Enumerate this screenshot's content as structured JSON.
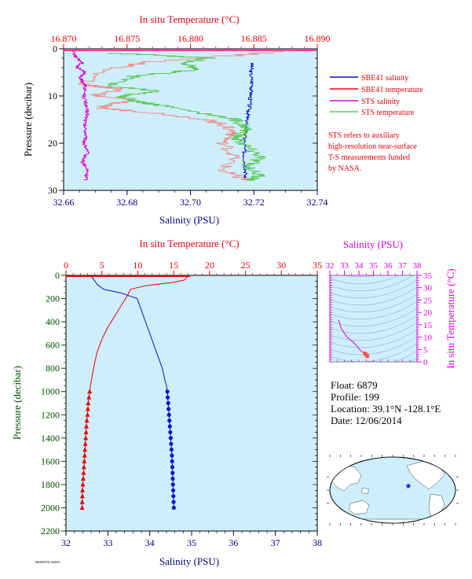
{
  "colors": {
    "plot_bg": "#cdeefa",
    "red": "#e8000b",
    "red_light": "#f0908c",
    "blue": "#0a14c8",
    "magenta": "#dd00dd",
    "green": "#5fc95f",
    "navy_text": "#000080",
    "green_text": "#004d00",
    "black": "#000000"
  },
  "chart_data": [
    {
      "type": "line",
      "title": "In situ Temperature (°C)",
      "top_axis": {
        "label": "In situ Temperature (°C)",
        "range": [
          16.87,
          16.89
        ],
        "ticks": [
          "16.870",
          "16.875",
          "16.880",
          "16.885",
          "16.890"
        ]
      },
      "bottom_axis": {
        "label": "Salinity (PSU)",
        "range": [
          32.66,
          32.74
        ],
        "ticks": [
          "32.66",
          "32.68",
          "32.70",
          "32.72",
          "32.74"
        ]
      },
      "y_axis": {
        "label": "Pressure (decibar)",
        "range": [
          0,
          30
        ],
        "inverted": true,
        "ticks": [
          "0",
          "10",
          "20",
          "30"
        ]
      },
      "legend": [
        {
          "name": "SBE41 salinity",
          "color": "blue"
        },
        {
          "name": "SBE41 temperature",
          "color": "red"
        },
        {
          "name": "STS salinity",
          "color": "magenta"
        },
        {
          "name": "STS temperature",
          "color": "green"
        }
      ],
      "note": [
        "STS refers to auxiliary",
        "high-resolution near-surface",
        "T-S measurements funded",
        "by NASA."
      ],
      "series": [
        {
          "name": "SBE41 salinity",
          "axis": "salinity",
          "color": "blue",
          "points": [
            [
              32.7195,
              3
            ],
            [
              32.719,
              5
            ],
            [
              32.7195,
              8
            ],
            [
              32.719,
              10
            ],
            [
              32.7185,
              13
            ],
            [
              32.7178,
              15
            ],
            [
              32.7175,
              17
            ],
            [
              32.717,
              20
            ],
            [
              32.717,
              23
            ],
            [
              32.7175,
              26
            ],
            [
              32.717,
              28
            ]
          ]
        },
        {
          "name": "SBE41 temperature",
          "axis": "temperature",
          "color": "red_light",
          "points": [
            [
              16.888,
              0.6
            ],
            [
              16.8765,
              3
            ],
            [
              16.873,
              5
            ],
            [
              16.8715,
              7.5
            ],
            [
              16.8725,
              8
            ],
            [
              16.8745,
              8.5
            ],
            [
              16.8725,
              10
            ],
            [
              16.8755,
              11
            ],
            [
              16.8725,
              12.5
            ],
            [
              16.8765,
              13.5
            ],
            [
              16.881,
              15
            ],
            [
              16.8825,
              16
            ],
            [
              16.8835,
              18
            ],
            [
              16.8825,
              20
            ],
            [
              16.8835,
              23
            ],
            [
              16.8825,
              26
            ],
            [
              16.8845,
              28
            ]
          ]
        },
        {
          "name": "STS salinity",
          "axis": "salinity",
          "color": "magenta",
          "points": [
            [
              32.663,
              0.3
            ],
            [
              32.664,
              2
            ],
            [
              32.666,
              3
            ],
            [
              32.664,
              4
            ],
            [
              32.667,
              5
            ],
            [
              32.665,
              6
            ],
            [
              32.666,
              7
            ],
            [
              32.667,
              8
            ],
            [
              32.6665,
              10
            ],
            [
              32.667,
              12
            ],
            [
              32.6675,
              14
            ],
            [
              32.6665,
              16
            ],
            [
              32.667,
              18
            ],
            [
              32.6665,
              20
            ],
            [
              32.6675,
              22
            ],
            [
              32.666,
              24
            ],
            [
              32.6675,
              26
            ],
            [
              32.667,
              28
            ]
          ]
        },
        {
          "name": "STS temperature",
          "axis": "temperature",
          "color": "green",
          "points": [
            [
              16.874,
              1
            ],
            [
              16.8815,
              2
            ],
            [
              16.8795,
              3
            ],
            [
              16.8805,
              4.5
            ],
            [
              16.8755,
              6
            ],
            [
              16.8735,
              8
            ],
            [
              16.8775,
              9
            ],
            [
              16.8745,
              10
            ],
            [
              16.8755,
              11
            ],
            [
              16.8775,
              12
            ],
            [
              16.8815,
              14
            ],
            [
              16.8835,
              15
            ],
            [
              16.8845,
              17
            ],
            [
              16.8835,
              19
            ],
            [
              16.8845,
              21
            ],
            [
              16.8855,
              23
            ],
            [
              16.8845,
              25
            ],
            [
              16.8855,
              27
            ],
            [
              16.8845,
              28
            ]
          ]
        }
      ]
    },
    {
      "type": "line",
      "top_axis": {
        "label": "In situ Temperature (°C)",
        "range": [
          0,
          35
        ],
        "ticks": [
          "0",
          "5",
          "10",
          "15",
          "20",
          "25",
          "30",
          "35"
        ]
      },
      "bottom_axis": {
        "label": "Salinity (PSU)",
        "range": [
          32,
          38
        ],
        "ticks": [
          "32",
          "33",
          "34",
          "35",
          "36",
          "37",
          "38"
        ]
      },
      "y_axis": {
        "label": "Pressure (decibar)",
        "range": [
          0,
          2200
        ],
        "inverted": true,
        "ticks": [
          "0",
          "200",
          "400",
          "600",
          "800",
          "1000",
          "1200",
          "1400",
          "1600",
          "1800",
          "2000",
          "2200"
        ]
      },
      "series": [
        {
          "name": "Temperature",
          "axis": "temperature",
          "color": "red",
          "profile": [
            [
              17.0,
              5
            ],
            [
              16.5,
              40
            ],
            [
              15.0,
              60
            ],
            [
              11.0,
              90
            ],
            [
              9.0,
              120
            ],
            [
              8.5,
              180
            ],
            [
              7.8,
              250
            ],
            [
              6.8,
              350
            ],
            [
              5.8,
              450
            ],
            [
              5.0,
              550
            ],
            [
              4.4,
              650
            ],
            [
              4.0,
              750
            ],
            [
              3.7,
              850
            ],
            [
              3.4,
              950
            ]
          ],
          "markers": [
            [
              3.3,
              1000
            ],
            [
              3.2,
              1050
            ],
            [
              3.1,
              1100
            ],
            [
              3.05,
              1150
            ],
            [
              3.0,
              1200
            ],
            [
              2.9,
              1250
            ],
            [
              2.85,
              1300
            ],
            [
              2.8,
              1350
            ],
            [
              2.75,
              1400
            ],
            [
              2.7,
              1450
            ],
            [
              2.65,
              1500
            ],
            [
              2.6,
              1550
            ],
            [
              2.55,
              1600
            ],
            [
              2.5,
              1650
            ],
            [
              2.45,
              1700
            ],
            [
              2.4,
              1750
            ],
            [
              2.35,
              1800
            ],
            [
              2.3,
              1850
            ],
            [
              2.28,
              1900
            ],
            [
              2.26,
              1950
            ],
            [
              2.25,
              2000
            ]
          ]
        },
        {
          "name": "Salinity",
          "axis": "salinity",
          "color": "blue",
          "profile": [
            [
              32.6,
              5
            ],
            [
              32.75,
              80
            ],
            [
              32.9,
              120
            ],
            [
              33.3,
              150
            ],
            [
              33.7,
              200
            ],
            [
              33.8,
              300
            ],
            [
              33.95,
              450
            ],
            [
              34.1,
              600
            ],
            [
              34.2,
              700
            ],
            [
              34.3,
              800
            ],
            [
              34.36,
              900
            ],
            [
              34.4,
              950
            ]
          ],
          "markers": [
            [
              34.42,
              1000
            ],
            [
              34.43,
              1050
            ],
            [
              34.44,
              1100
            ],
            [
              34.45,
              1150
            ],
            [
              34.46,
              1200
            ],
            [
              34.47,
              1250
            ],
            [
              34.48,
              1300
            ],
            [
              34.49,
              1350
            ],
            [
              34.5,
              1400
            ],
            [
              34.51,
              1450
            ],
            [
              34.52,
              1500
            ],
            [
              34.53,
              1550
            ],
            [
              34.535,
              1600
            ],
            [
              34.54,
              1650
            ],
            [
              34.545,
              1700
            ],
            [
              34.55,
              1750
            ],
            [
              34.555,
              1800
            ],
            [
              34.56,
              1850
            ],
            [
              34.565,
              1900
            ],
            [
              34.57,
              1950
            ],
            [
              34.575,
              2000
            ]
          ]
        }
      ]
    },
    {
      "type": "scatter",
      "x_axis": {
        "label": "Salinity (PSU)",
        "range": [
          32,
          38
        ],
        "ticks": [
          "32",
          "33",
          "34",
          "35",
          "36",
          "37",
          "38"
        ]
      },
      "y_axis": {
        "label": "In situ Temperature (°C)",
        "range": [
          0,
          35
        ],
        "ticks": [
          "0",
          "5",
          "10",
          "15",
          "20",
          "25",
          "30",
          "35"
        ]
      },
      "ts_curve": [
        [
          32.6,
          17
        ],
        [
          32.75,
          14
        ],
        [
          32.95,
          12
        ],
        [
          33.2,
          10
        ],
        [
          33.6,
          8
        ],
        [
          33.85,
          6.5
        ],
        [
          34.05,
          5
        ],
        [
          34.2,
          4.2
        ],
        [
          34.35,
          3.6
        ],
        [
          34.45,
          3.2
        ]
      ],
      "ts_markers": [
        [
          34.42,
          3.4
        ],
        [
          34.46,
          3.1
        ],
        [
          34.5,
          2.9
        ],
        [
          34.53,
          2.7
        ],
        [
          34.56,
          2.5
        ],
        [
          34.575,
          2.3
        ]
      ]
    }
  ],
  "float_info": {
    "float": "Float:  6879",
    "profile": "Profile:  199",
    "location": "Location:  39.1°N  -128.1°E",
    "date": "Date:  12/06/2014"
  },
  "footer_tag": "AR0000702 020810"
}
